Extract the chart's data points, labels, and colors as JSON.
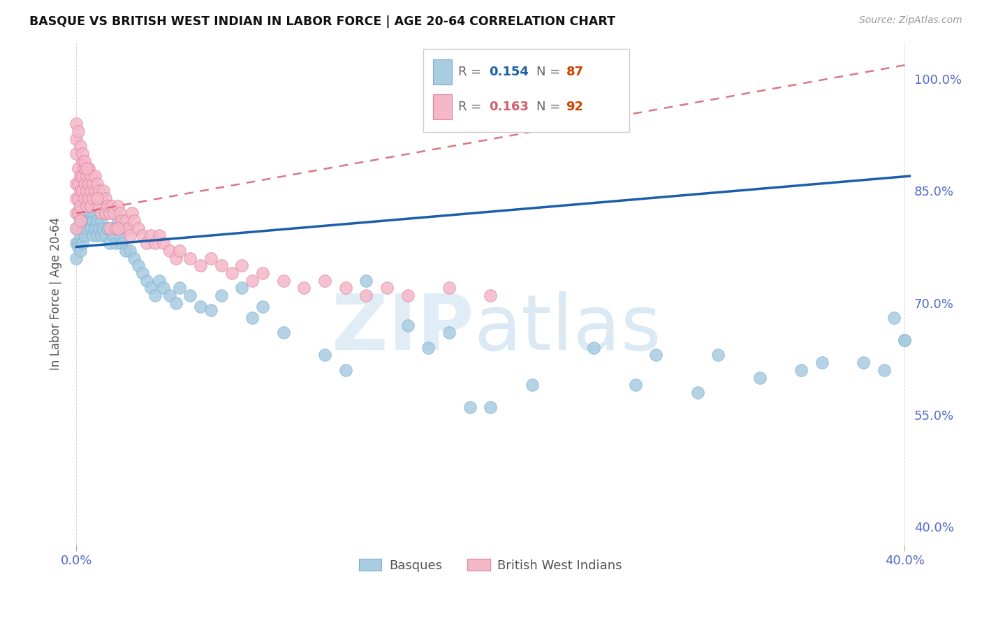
{
  "title": "BASQUE VS BRITISH WEST INDIAN IN LABOR FORCE | AGE 20-64 CORRELATION CHART",
  "source": "Source: ZipAtlas.com",
  "ylabel": "In Labor Force | Age 20-64",
  "xlim": [
    -0.003,
    0.403
  ],
  "ylim": [
    0.375,
    1.05
  ],
  "ytick_vals": [
    0.4,
    0.55,
    0.7,
    0.85,
    1.0
  ],
  "ytick_labels": [
    "40.0%",
    "55.0%",
    "70.0%",
    "85.0%",
    "100.0%"
  ],
  "xtick_vals": [
    0.0,
    0.4
  ],
  "xtick_labels": [
    "0.0%",
    "40.0%"
  ],
  "blue_color": "#a8cce0",
  "blue_edge": "#7bafd4",
  "pink_color": "#f5b8c8",
  "pink_edge": "#e080a0",
  "blue_line_color": "#1a5fa8",
  "pink_line_color": "#d06070",
  "tick_color": "#5566cc",
  "ylabel_color": "#555555",
  "grid_color": "#cccccc",
  "legend_r_blue": "0.154",
  "legend_n_blue": "87",
  "legend_r_pink": "0.163",
  "legend_n_pink": "92",
  "legend_label_blue": "Basques",
  "legend_label_pink": "British West Indians",
  "watermark_zip_color": "#c8dff0",
  "watermark_atlas_color": "#b0cfe8",
  "blue_line_x0": 0.0,
  "blue_line_x1": 0.403,
  "blue_line_y0": 0.775,
  "blue_line_y1": 0.87,
  "pink_line_x0": 0.0,
  "pink_line_x1": 0.403,
  "pink_line_y0": 0.82,
  "pink_line_y1": 1.02,
  "blue_x": [
    0.0,
    0.0,
    0.0,
    0.001,
    0.001,
    0.001,
    0.001,
    0.002,
    0.002,
    0.002,
    0.002,
    0.003,
    0.003,
    0.003,
    0.003,
    0.004,
    0.004,
    0.004,
    0.005,
    0.005,
    0.005,
    0.006,
    0.006,
    0.007,
    0.007,
    0.008,
    0.008,
    0.009,
    0.009,
    0.01,
    0.01,
    0.011,
    0.012,
    0.012,
    0.013,
    0.014,
    0.015,
    0.016,
    0.017,
    0.018,
    0.019,
    0.02,
    0.021,
    0.022,
    0.024,
    0.026,
    0.028,
    0.03,
    0.032,
    0.034,
    0.036,
    0.038,
    0.04,
    0.042,
    0.045,
    0.048,
    0.05,
    0.055,
    0.06,
    0.065,
    0.07,
    0.08,
    0.085,
    0.09,
    0.1,
    0.12,
    0.13,
    0.14,
    0.16,
    0.17,
    0.18,
    0.19,
    0.2,
    0.22,
    0.25,
    0.27,
    0.3,
    0.33,
    0.35,
    0.38,
    0.39,
    0.395,
    0.4,
    0.36,
    0.31,
    0.28,
    0.4
  ],
  "blue_y": [
    0.8,
    0.78,
    0.76,
    0.82,
    0.8,
    0.78,
    0.775,
    0.83,
    0.81,
    0.79,
    0.77,
    0.84,
    0.82,
    0.8,
    0.78,
    0.83,
    0.81,
    0.79,
    0.84,
    0.82,
    0.8,
    0.83,
    0.81,
    0.82,
    0.8,
    0.81,
    0.79,
    0.82,
    0.8,
    0.81,
    0.79,
    0.8,
    0.81,
    0.79,
    0.8,
    0.79,
    0.8,
    0.78,
    0.8,
    0.79,
    0.78,
    0.81,
    0.79,
    0.78,
    0.77,
    0.77,
    0.76,
    0.75,
    0.74,
    0.73,
    0.72,
    0.71,
    0.73,
    0.72,
    0.71,
    0.7,
    0.72,
    0.71,
    0.695,
    0.69,
    0.71,
    0.72,
    0.68,
    0.695,
    0.66,
    0.63,
    0.61,
    0.73,
    0.67,
    0.64,
    0.66,
    0.56,
    0.56,
    0.59,
    0.64,
    0.59,
    0.58,
    0.6,
    0.61,
    0.62,
    0.61,
    0.68,
    0.65,
    0.62,
    0.63,
    0.63,
    0.65
  ],
  "pink_x": [
    0.0,
    0.0,
    0.0,
    0.0,
    0.001,
    0.001,
    0.001,
    0.001,
    0.002,
    0.002,
    0.002,
    0.002,
    0.003,
    0.003,
    0.003,
    0.004,
    0.004,
    0.004,
    0.005,
    0.005,
    0.005,
    0.006,
    0.006,
    0.006,
    0.007,
    0.007,
    0.007,
    0.008,
    0.008,
    0.009,
    0.009,
    0.01,
    0.01,
    0.011,
    0.011,
    0.012,
    0.012,
    0.013,
    0.014,
    0.014,
    0.015,
    0.016,
    0.016,
    0.017,
    0.018,
    0.019,
    0.02,
    0.021,
    0.022,
    0.023,
    0.024,
    0.025,
    0.026,
    0.027,
    0.028,
    0.03,
    0.032,
    0.034,
    0.036,
    0.038,
    0.04,
    0.042,
    0.045,
    0.048,
    0.05,
    0.055,
    0.06,
    0.065,
    0.07,
    0.075,
    0.08,
    0.085,
    0.09,
    0.1,
    0.11,
    0.12,
    0.13,
    0.14,
    0.15,
    0.16,
    0.18,
    0.2,
    0.0,
    0.0,
    0.0,
    0.001,
    0.002,
    0.003,
    0.004,
    0.005,
    0.01,
    0.02
  ],
  "pink_y": [
    0.86,
    0.84,
    0.82,
    0.8,
    0.88,
    0.86,
    0.84,
    0.82,
    0.87,
    0.85,
    0.83,
    0.81,
    0.89,
    0.87,
    0.85,
    0.88,
    0.86,
    0.84,
    0.87,
    0.85,
    0.83,
    0.88,
    0.86,
    0.84,
    0.87,
    0.85,
    0.83,
    0.86,
    0.84,
    0.87,
    0.85,
    0.86,
    0.84,
    0.85,
    0.83,
    0.84,
    0.82,
    0.85,
    0.84,
    0.82,
    0.83,
    0.82,
    0.8,
    0.83,
    0.82,
    0.8,
    0.83,
    0.82,
    0.81,
    0.8,
    0.81,
    0.8,
    0.79,
    0.82,
    0.81,
    0.8,
    0.79,
    0.78,
    0.79,
    0.78,
    0.79,
    0.78,
    0.77,
    0.76,
    0.77,
    0.76,
    0.75,
    0.76,
    0.75,
    0.74,
    0.75,
    0.73,
    0.74,
    0.73,
    0.72,
    0.73,
    0.72,
    0.71,
    0.72,
    0.71,
    0.72,
    0.71,
    0.94,
    0.92,
    0.9,
    0.93,
    0.91,
    0.9,
    0.89,
    0.88,
    0.84,
    0.8
  ]
}
